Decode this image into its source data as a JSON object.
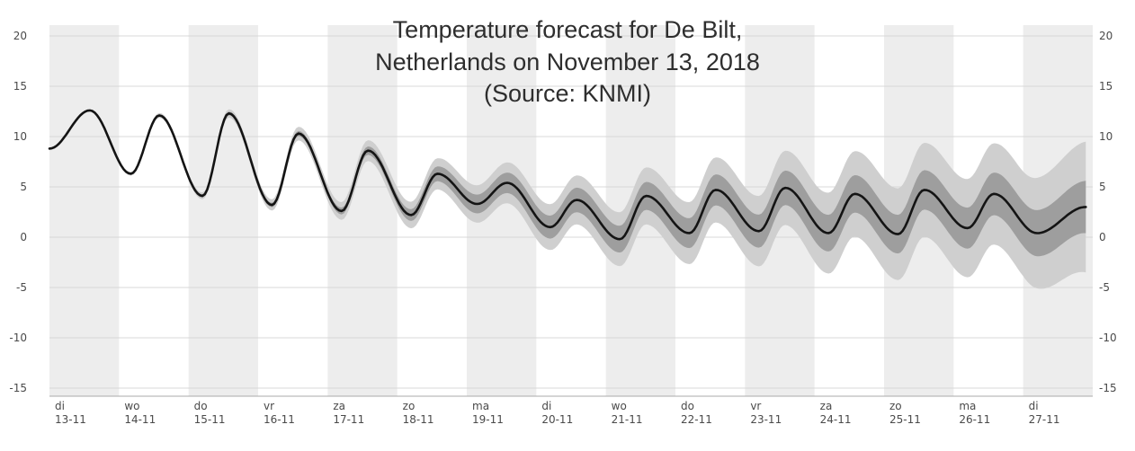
{
  "title": {
    "line1": "Temperature forecast for De Bilt,",
    "line2": "Netherlands on November 13, 2018",
    "line3": "(Source: KNMI)"
  },
  "chart_data": {
    "type": "line",
    "title": "Temperature forecast for De Bilt, Netherlands on November 13, 2018 (Source: KNMI)",
    "xlabel": "",
    "ylabel": "",
    "ylim": [
      -15,
      20
    ],
    "y_ticks": [
      20,
      15,
      10,
      5,
      0,
      -5,
      -10,
      -15
    ],
    "grid": true,
    "legend": false,
    "x_days": [
      {
        "day": "di",
        "date": "13-11"
      },
      {
        "day": "wo",
        "date": "14-11"
      },
      {
        "day": "do",
        "date": "15-11"
      },
      {
        "day": "vr",
        "date": "16-11"
      },
      {
        "day": "za",
        "date": "17-11"
      },
      {
        "day": "zo",
        "date": "18-11"
      },
      {
        "day": "ma",
        "date": "19-11"
      },
      {
        "day": "di",
        "date": "20-11"
      },
      {
        "day": "wo",
        "date": "21-11"
      },
      {
        "day": "do",
        "date": "22-11"
      },
      {
        "day": "vr",
        "date": "23-11"
      },
      {
        "day": "za",
        "date": "24-11"
      },
      {
        "day": "zo",
        "date": "25-11"
      },
      {
        "day": "ma",
        "date": "26-11"
      },
      {
        "day": "di",
        "date": "27-11"
      }
    ],
    "x_range_days": [
      0,
      14.9
    ],
    "series": [
      {
        "name": "median-temperature",
        "style": "line",
        "extrema_points_t_value": [
          [
            0,
            8.8
          ],
          [
            0.58,
            12.6
          ],
          [
            1.17,
            6.3
          ],
          [
            1.58,
            12.1
          ],
          [
            2.2,
            4.1
          ],
          [
            2.58,
            12.3
          ],
          [
            3.2,
            3.2
          ],
          [
            3.58,
            10.3
          ],
          [
            4.2,
            2.6
          ],
          [
            4.58,
            8.6
          ],
          [
            5.2,
            2.2
          ],
          [
            5.58,
            6.3
          ],
          [
            6.15,
            3.3
          ],
          [
            6.58,
            5.4
          ],
          [
            7.2,
            1.0
          ],
          [
            7.58,
            3.7
          ],
          [
            8.2,
            -0.2
          ],
          [
            8.58,
            4.1
          ],
          [
            9.2,
            0.4
          ],
          [
            9.58,
            4.7
          ],
          [
            10.2,
            0.6
          ],
          [
            10.58,
            4.9
          ],
          [
            11.2,
            0.4
          ],
          [
            11.58,
            4.3
          ],
          [
            12.2,
            0.3
          ],
          [
            12.58,
            4.7
          ],
          [
            13.2,
            0.9
          ],
          [
            13.58,
            4.3
          ],
          [
            14.2,
            0.4
          ],
          [
            14.9,
            3.0
          ]
        ]
      },
      {
        "name": "uncertainty-bands",
        "style": "band",
        "halfwidths_t_inner_outer": [
          [
            0,
            0,
            0
          ],
          [
            2,
            0.15,
            0.3
          ],
          [
            3,
            0.2,
            0.5
          ],
          [
            4,
            0.3,
            0.8
          ],
          [
            5,
            0.5,
            1.2
          ],
          [
            5.5,
            0.7,
            1.5
          ],
          [
            6,
            0.9,
            1.8
          ],
          [
            7,
            1.1,
            2.2
          ],
          [
            8,
            1.3,
            2.6
          ],
          [
            9,
            1.45,
            3.0
          ],
          [
            10,
            1.6,
            3.4
          ],
          [
            11,
            1.8,
            3.9
          ],
          [
            12,
            1.9,
            4.5
          ],
          [
            13,
            2.0,
            4.8
          ],
          [
            14,
            2.2,
            5.2
          ],
          [
            14.9,
            2.6,
            6.5
          ]
        ]
      }
    ],
    "colors": {
      "median_line": "#141414",
      "inner_band": "#9e9e9e",
      "outer_band": "#cfcfcf",
      "gridline": "#d8d8d8",
      "day_stripe": "#ededed",
      "axis_text": "#4a4a4a",
      "axis_line": "#aaaaaa"
    }
  }
}
